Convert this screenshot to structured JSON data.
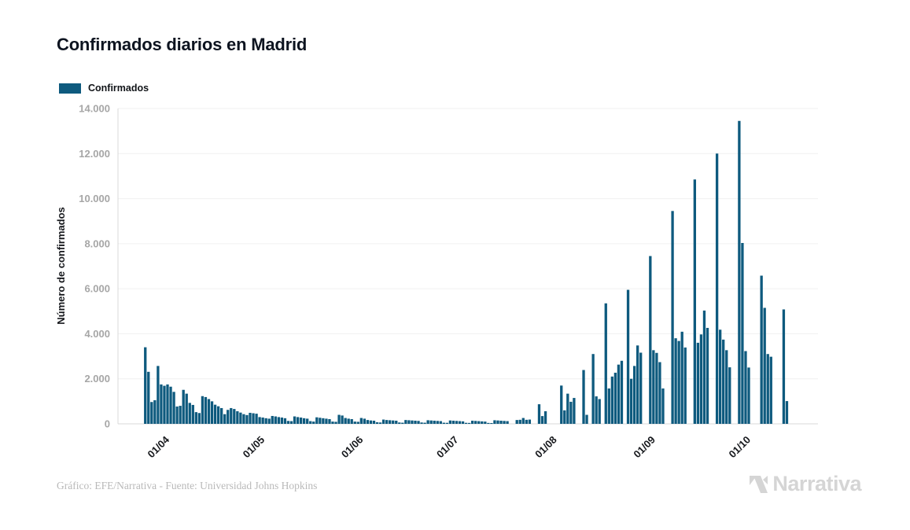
{
  "header": {
    "title": "Confirmados diarios en Madrid"
  },
  "legend": {
    "label": "Confirmados",
    "swatch_color": "#0e5a7e"
  },
  "chart_data": {
    "type": "bar",
    "title": "Confirmados diarios en Madrid",
    "xlabel": "",
    "ylabel": "Número de confirmados",
    "ylim": [
      0,
      14000
    ],
    "grid": true,
    "legend_position": "top-left",
    "bar_color": "#0e5a7e",
    "y_ticks": [
      0,
      2000,
      4000,
      6000,
      8000,
      10000,
      12000,
      14000
    ],
    "y_tick_labels": [
      "0",
      "2.000",
      "4.000",
      "6.000",
      "8.000",
      "10.000",
      "12.000",
      "14.000"
    ],
    "x_tick_labels": [
      "01/04",
      "01/05",
      "01/06",
      "01/07",
      "01/08",
      "01/09",
      "01/10"
    ],
    "x_tick_indices": [
      7,
      37,
      68,
      98,
      129,
      160,
      190
    ],
    "series": [
      {
        "name": "Confirmados",
        "dates": [
          "25/03",
          "26/03",
          "27/03",
          "28/03",
          "29/03",
          "30/03",
          "31/03",
          "01/04",
          "02/04",
          "03/04",
          "04/04",
          "05/04",
          "06/04",
          "07/04",
          "08/04",
          "09/04",
          "10/04",
          "11/04",
          "12/04",
          "13/04",
          "14/04",
          "15/04",
          "16/04",
          "17/04",
          "18/04",
          "19/04",
          "20/04",
          "21/04",
          "22/04",
          "23/04",
          "24/04",
          "25/04",
          "26/04",
          "27/04",
          "28/04",
          "29/04",
          "30/04",
          "01/05",
          "02/05",
          "03/05",
          "04/05",
          "05/05",
          "06/05",
          "07/05",
          "08/05",
          "09/05",
          "10/05",
          "11/05",
          "12/05",
          "13/05",
          "14/05",
          "15/05",
          "16/05",
          "17/05",
          "18/05",
          "19/05",
          "20/05",
          "21/05",
          "22/05",
          "23/05",
          "24/05",
          "25/05",
          "26/05",
          "27/05",
          "28/05",
          "29/05",
          "30/05",
          "31/05",
          "01/06",
          "02/06",
          "03/06",
          "04/06",
          "05/06",
          "06/06",
          "07/06",
          "08/06",
          "09/06",
          "10/06",
          "11/06",
          "12/06",
          "13/06",
          "14/06",
          "15/06",
          "16/06",
          "17/06",
          "18/06",
          "19/06",
          "20/06",
          "21/06",
          "22/06",
          "23/06",
          "24/06",
          "25/06",
          "26/06",
          "27/06",
          "28/06",
          "29/06",
          "30/06",
          "01/07",
          "02/07",
          "03/07",
          "04/07",
          "05/07",
          "06/07",
          "07/07",
          "08/07",
          "09/07",
          "10/07",
          "11/07",
          "12/07",
          "13/07",
          "14/07",
          "15/07",
          "16/07",
          "17/07",
          "18/07",
          "19/07",
          "20/07",
          "21/07",
          "22/07",
          "23/07",
          "24/07",
          "25/07",
          "26/07",
          "27/07",
          "28/07",
          "29/07",
          "30/07",
          "31/07",
          "01/08",
          "02/08",
          "03/08",
          "04/08",
          "05/08",
          "06/08",
          "07/08",
          "08/08",
          "09/08",
          "10/08",
          "11/08",
          "12/08",
          "13/08",
          "14/08",
          "15/08",
          "16/08",
          "17/08",
          "18/08",
          "19/08",
          "20/08",
          "21/08",
          "22/08",
          "23/08",
          "24/08",
          "25/08",
          "26/08",
          "27/08",
          "28/08",
          "29/08",
          "30/08",
          "31/08",
          "01/09",
          "02/09",
          "03/09",
          "04/09",
          "05/09",
          "06/09",
          "07/09",
          "08/09",
          "09/09",
          "10/09",
          "11/09",
          "12/09",
          "13/09",
          "14/09",
          "15/09",
          "16/09",
          "17/09",
          "18/09",
          "19/09",
          "20/09",
          "21/09",
          "22/09",
          "23/09",
          "24/09",
          "25/09",
          "26/09",
          "27/09",
          "28/09",
          "29/09",
          "30/09",
          "01/10",
          "02/10",
          "03/10",
          "04/10",
          "05/10",
          "06/10",
          "07/10",
          "08/10",
          "09/10",
          "10/10",
          "11/10",
          "12/10",
          "13/10"
        ],
        "values": [
          3400,
          2310,
          970,
          1050,
          2570,
          1750,
          1690,
          1750,
          1650,
          1420,
          770,
          800,
          1510,
          1340,
          930,
          840,
          520,
          480,
          1230,
          1190,
          1100,
          1000,
          850,
          780,
          700,
          430,
          620,
          700,
          660,
          560,
          500,
          430,
          390,
          490,
          470,
          450,
          300,
          280,
          250,
          230,
          350,
          330,
          300,
          280,
          250,
          130,
          120,
          330,
          300,
          280,
          250,
          230,
          120,
          100,
          290,
          270,
          250,
          230,
          210,
          100,
          90,
          400,
          370,
          260,
          230,
          210,
          100,
          90,
          260,
          230,
          170,
          150,
          140,
          70,
          60,
          190,
          170,
          160,
          150,
          140,
          60,
          50,
          170,
          160,
          150,
          140,
          130,
          60,
          50,
          160,
          150,
          140,
          130,
          120,
          50,
          45,
          150,
          140,
          130,
          120,
          110,
          45,
          40,
          140,
          130,
          120,
          110,
          100,
          40,
          35,
          160,
          150,
          140,
          130,
          120,
          0,
          0,
          170,
          180,
          260,
          180,
          190,
          0,
          0,
          870,
          345,
          560,
          0,
          0,
          0,
          0,
          1700,
          600,
          1340,
          980,
          1150,
          0,
          0,
          2390,
          400,
          0,
          3100,
          1220,
          1100,
          0,
          5350,
          1570,
          2100,
          2270,
          2630,
          2800,
          0,
          5950,
          2000,
          2570,
          3480,
          3160,
          0,
          0,
          7450,
          3270,
          3150,
          2740,
          1570,
          0,
          0,
          9450,
          3800,
          3680,
          4090,
          3390,
          0,
          0,
          10850,
          3600,
          3970,
          5030,
          4260,
          0,
          0,
          12000,
          4180,
          3740,
          3270,
          2510,
          0,
          0,
          13450,
          8030,
          3230,
          2500,
          0,
          0,
          0,
          6580,
          5150,
          3100,
          2980,
          0,
          0,
          0,
          5080,
          1010
        ]
      }
    ]
  },
  "footer": {
    "credit": "Gráfico: EFE/Narrativa - Fuente: Universidad Johns Hopkins",
    "logo_text": "Narrativa"
  }
}
